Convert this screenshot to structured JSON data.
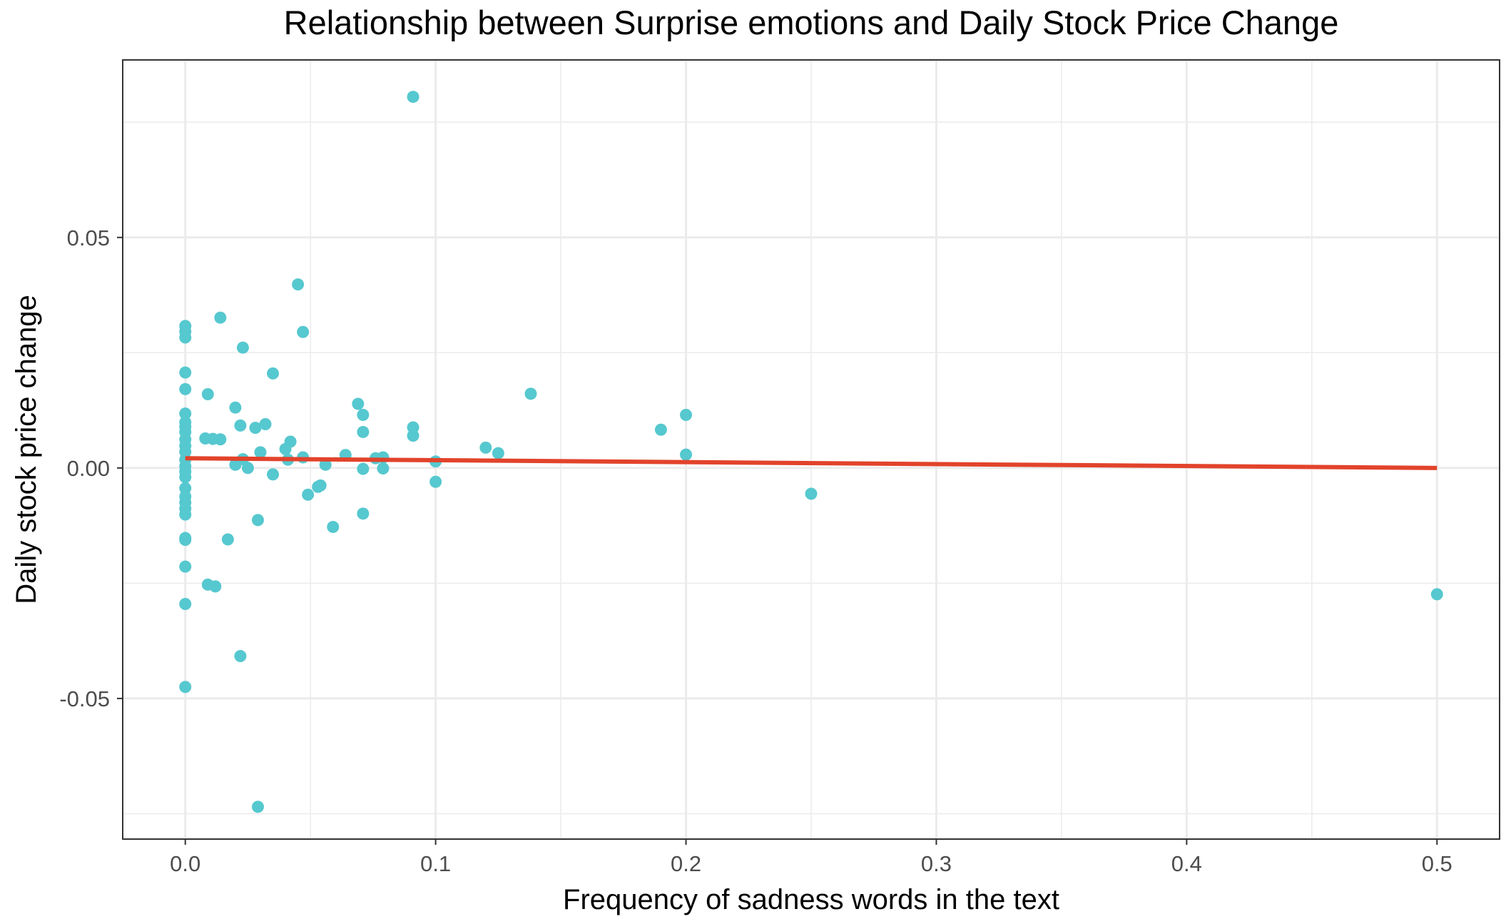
{
  "chart_data": {
    "type": "scatter",
    "title": "Relationship between Surprise emotions and Daily Stock Price Change",
    "xlabel": "Frequency of sadness words in the text",
    "ylabel": "Daily stock price change",
    "xlim": [
      -0.025,
      0.525
    ],
    "ylim": [
      -0.0805,
      0.0885
    ],
    "x_ticks": [
      0.0,
      0.1,
      0.2,
      0.3,
      0.4,
      0.5
    ],
    "x_tick_labels": [
      "0.0",
      "0.1",
      "0.2",
      "0.3",
      "0.4",
      "0.5"
    ],
    "y_ticks": [
      -0.05,
      0.0,
      0.05
    ],
    "y_tick_labels": [
      "-0.05",
      "0.00",
      "0.05"
    ],
    "grid": true,
    "colors": {
      "points": "#56c8cf",
      "fit_line": "#e2432b",
      "grid": "#ebebeb",
      "border": "#333333"
    },
    "points": [
      {
        "x": 0.091,
        "y": 0.0805
      },
      {
        "x": 0.045,
        "y": 0.0398
      },
      {
        "x": 0.014,
        "y": 0.0326
      },
      {
        "x": 0.047,
        "y": 0.0295
      },
      {
        "x": 0.0,
        "y": 0.0308
      },
      {
        "x": 0.0,
        "y": 0.0296
      },
      {
        "x": 0.0,
        "y": 0.0283
      },
      {
        "x": 0.023,
        "y": 0.0261
      },
      {
        "x": 0.0,
        "y": 0.0207
      },
      {
        "x": 0.035,
        "y": 0.0205
      },
      {
        "x": 0.0,
        "y": 0.0171
      },
      {
        "x": 0.009,
        "y": 0.016
      },
      {
        "x": 0.138,
        "y": 0.0161
      },
      {
        "x": 0.069,
        "y": 0.0139
      },
      {
        "x": 0.02,
        "y": 0.0131
      },
      {
        "x": 0.0,
        "y": 0.0118
      },
      {
        "x": 0.071,
        "y": 0.0115
      },
      {
        "x": 0.2,
        "y": 0.0115
      },
      {
        "x": 0.0,
        "y": 0.0099
      },
      {
        "x": 0.0,
        "y": 0.0089
      },
      {
        "x": 0.032,
        "y": 0.0095
      },
      {
        "x": 0.022,
        "y": 0.0092
      },
      {
        "x": 0.028,
        "y": 0.0087
      },
      {
        "x": 0.091,
        "y": 0.0088
      },
      {
        "x": 0.19,
        "y": 0.0083
      },
      {
        "x": 0.0,
        "y": 0.0078
      },
      {
        "x": 0.071,
        "y": 0.0078
      },
      {
        "x": 0.091,
        "y": 0.007
      },
      {
        "x": 0.008,
        "y": 0.0064
      },
      {
        "x": 0.011,
        "y": 0.0063
      },
      {
        "x": 0.014,
        "y": 0.0062
      },
      {
        "x": 0.0,
        "y": 0.0062
      },
      {
        "x": 0.042,
        "y": 0.0057
      },
      {
        "x": 0.0,
        "y": 0.0048
      },
      {
        "x": 0.12,
        "y": 0.0044
      },
      {
        "x": 0.04,
        "y": 0.0041
      },
      {
        "x": 0.0,
        "y": 0.0035
      },
      {
        "x": 0.03,
        "y": 0.0034
      },
      {
        "x": 0.125,
        "y": 0.0032
      },
      {
        "x": 0.2,
        "y": 0.0029
      },
      {
        "x": 0.064,
        "y": 0.0028
      },
      {
        "x": 0.047,
        "y": 0.0023
      },
      {
        "x": 0.079,
        "y": 0.0023
      },
      {
        "x": 0.076,
        "y": 0.0021
      },
      {
        "x": 0.023,
        "y": 0.0019
      },
      {
        "x": 0.041,
        "y": 0.0018
      },
      {
        "x": 0.0,
        "y": 0.0018
      },
      {
        "x": 0.1,
        "y": 0.0014
      },
      {
        "x": 0.056,
        "y": 0.0007
      },
      {
        "x": 0.02,
        "y": 0.0007
      },
      {
        "x": 0.0,
        "y": 0.0004
      },
      {
        "x": 0.025,
        "y": 0.0
      },
      {
        "x": 0.071,
        "y": -0.0002
      },
      {
        "x": 0.079,
        "y": -0.0001
      },
      {
        "x": 0.0,
        "y": -0.0008
      },
      {
        "x": 0.035,
        "y": -0.0014
      },
      {
        "x": 0.0,
        "y": -0.002
      },
      {
        "x": 0.1,
        "y": -0.003
      },
      {
        "x": 0.054,
        "y": -0.0038
      },
      {
        "x": 0.053,
        "y": -0.0041
      },
      {
        "x": 0.0,
        "y": -0.0044
      },
      {
        "x": 0.049,
        "y": -0.0058
      },
      {
        "x": 0.25,
        "y": -0.0056
      },
      {
        "x": 0.0,
        "y": -0.0062
      },
      {
        "x": 0.0,
        "y": -0.0075
      },
      {
        "x": 0.0,
        "y": -0.0088
      },
      {
        "x": 0.071,
        "y": -0.0099
      },
      {
        "x": 0.0,
        "y": -0.0101
      },
      {
        "x": 0.029,
        "y": -0.0113
      },
      {
        "x": 0.059,
        "y": -0.0128
      },
      {
        "x": 0.0,
        "y": -0.0152
      },
      {
        "x": 0.017,
        "y": -0.0155
      },
      {
        "x": 0.0,
        "y": -0.0156
      },
      {
        "x": 0.0,
        "y": -0.0214
      },
      {
        "x": 0.009,
        "y": -0.0253
      },
      {
        "x": 0.012,
        "y": -0.0257
      },
      {
        "x": 0.5,
        "y": -0.0274
      },
      {
        "x": 0.0,
        "y": -0.0295
      },
      {
        "x": 0.022,
        "y": -0.0408
      },
      {
        "x": 0.0,
        "y": -0.0475
      },
      {
        "x": 0.029,
        "y": -0.0735
      }
    ],
    "fit_line": {
      "x": [
        0.0,
        0.5
      ],
      "y": [
        0.0021,
        0.0
      ]
    }
  }
}
